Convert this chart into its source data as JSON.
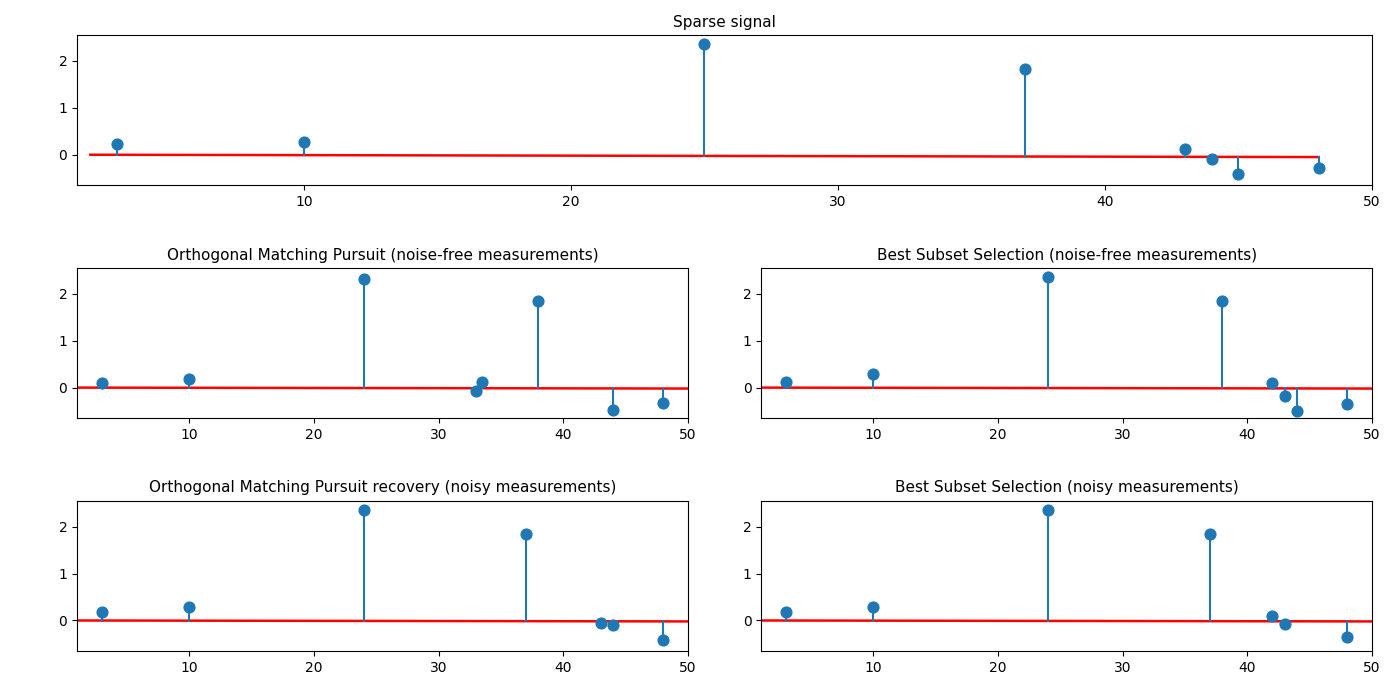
{
  "sparse_signal": {
    "title": "Sparse signal",
    "x": [
      3,
      10,
      25,
      37,
      43,
      44,
      45,
      48
    ],
    "y": [
      0.22,
      0.28,
      2.35,
      1.82,
      0.13,
      -0.1,
      -0.42,
      -0.28
    ],
    "baseline": [
      [
        2,
        0.0
      ],
      [
        48,
        -0.05
      ]
    ],
    "xlim": [
      1.5,
      50
    ],
    "ylim": [
      -0.65,
      2.55
    ]
  },
  "omp_noisefree": {
    "title": "Orthogonal Matching Pursuit (noise-free measurements)",
    "x": [
      3,
      10,
      24,
      33,
      33.5,
      38,
      44,
      48
    ],
    "y": [
      0.1,
      0.18,
      2.32,
      -0.08,
      0.13,
      1.85,
      -0.48,
      -0.32
    ],
    "baseline": [
      [
        1,
        0.0
      ],
      [
        50,
        -0.02
      ]
    ],
    "xlim": [
      1,
      50
    ],
    "ylim": [
      -0.65,
      2.55
    ]
  },
  "bss_noisefree": {
    "title": "Best Subset Selection (noise-free measurements)",
    "x": [
      3,
      10,
      24,
      38,
      42,
      43,
      44,
      48
    ],
    "y": [
      0.13,
      0.28,
      2.35,
      1.85,
      0.1,
      -0.18,
      -0.5,
      -0.35
    ],
    "baseline": [
      [
        1,
        0.0
      ],
      [
        50,
        -0.02
      ]
    ],
    "xlim": [
      1,
      50
    ],
    "ylim": [
      -0.65,
      2.55
    ]
  },
  "omp_noisy": {
    "title": "Orthogonal Matching Pursuit recovery (noisy measurements)",
    "x": [
      3,
      10,
      24,
      37,
      43,
      44,
      48
    ],
    "y": [
      0.18,
      0.28,
      2.35,
      1.85,
      -0.05,
      -0.1,
      -0.42
    ],
    "baseline": [
      [
        1,
        0.0
      ],
      [
        50,
        -0.02
      ]
    ],
    "xlim": [
      1,
      50
    ],
    "ylim": [
      -0.65,
      2.55
    ]
  },
  "bss_noisy": {
    "title": "Best Subset Selection (noisy measurements)",
    "x": [
      3,
      10,
      24,
      37,
      42,
      43,
      48
    ],
    "y": [
      0.18,
      0.28,
      2.35,
      1.85,
      0.1,
      -0.08,
      -0.35
    ],
    "baseline": [
      [
        1,
        0.0
      ],
      [
        50,
        -0.02
      ]
    ],
    "xlim": [
      1,
      50
    ],
    "ylim": [
      -0.65,
      2.55
    ]
  },
  "marker_color": "#1f77b4",
  "line_color": "#1f77b4",
  "baseline_color": "red",
  "baseline_linewidth": 1.8,
  "marker_size": 60,
  "stem_linewidth": 1.5,
  "title_fontsize": 11,
  "tick_fontsize": 10
}
